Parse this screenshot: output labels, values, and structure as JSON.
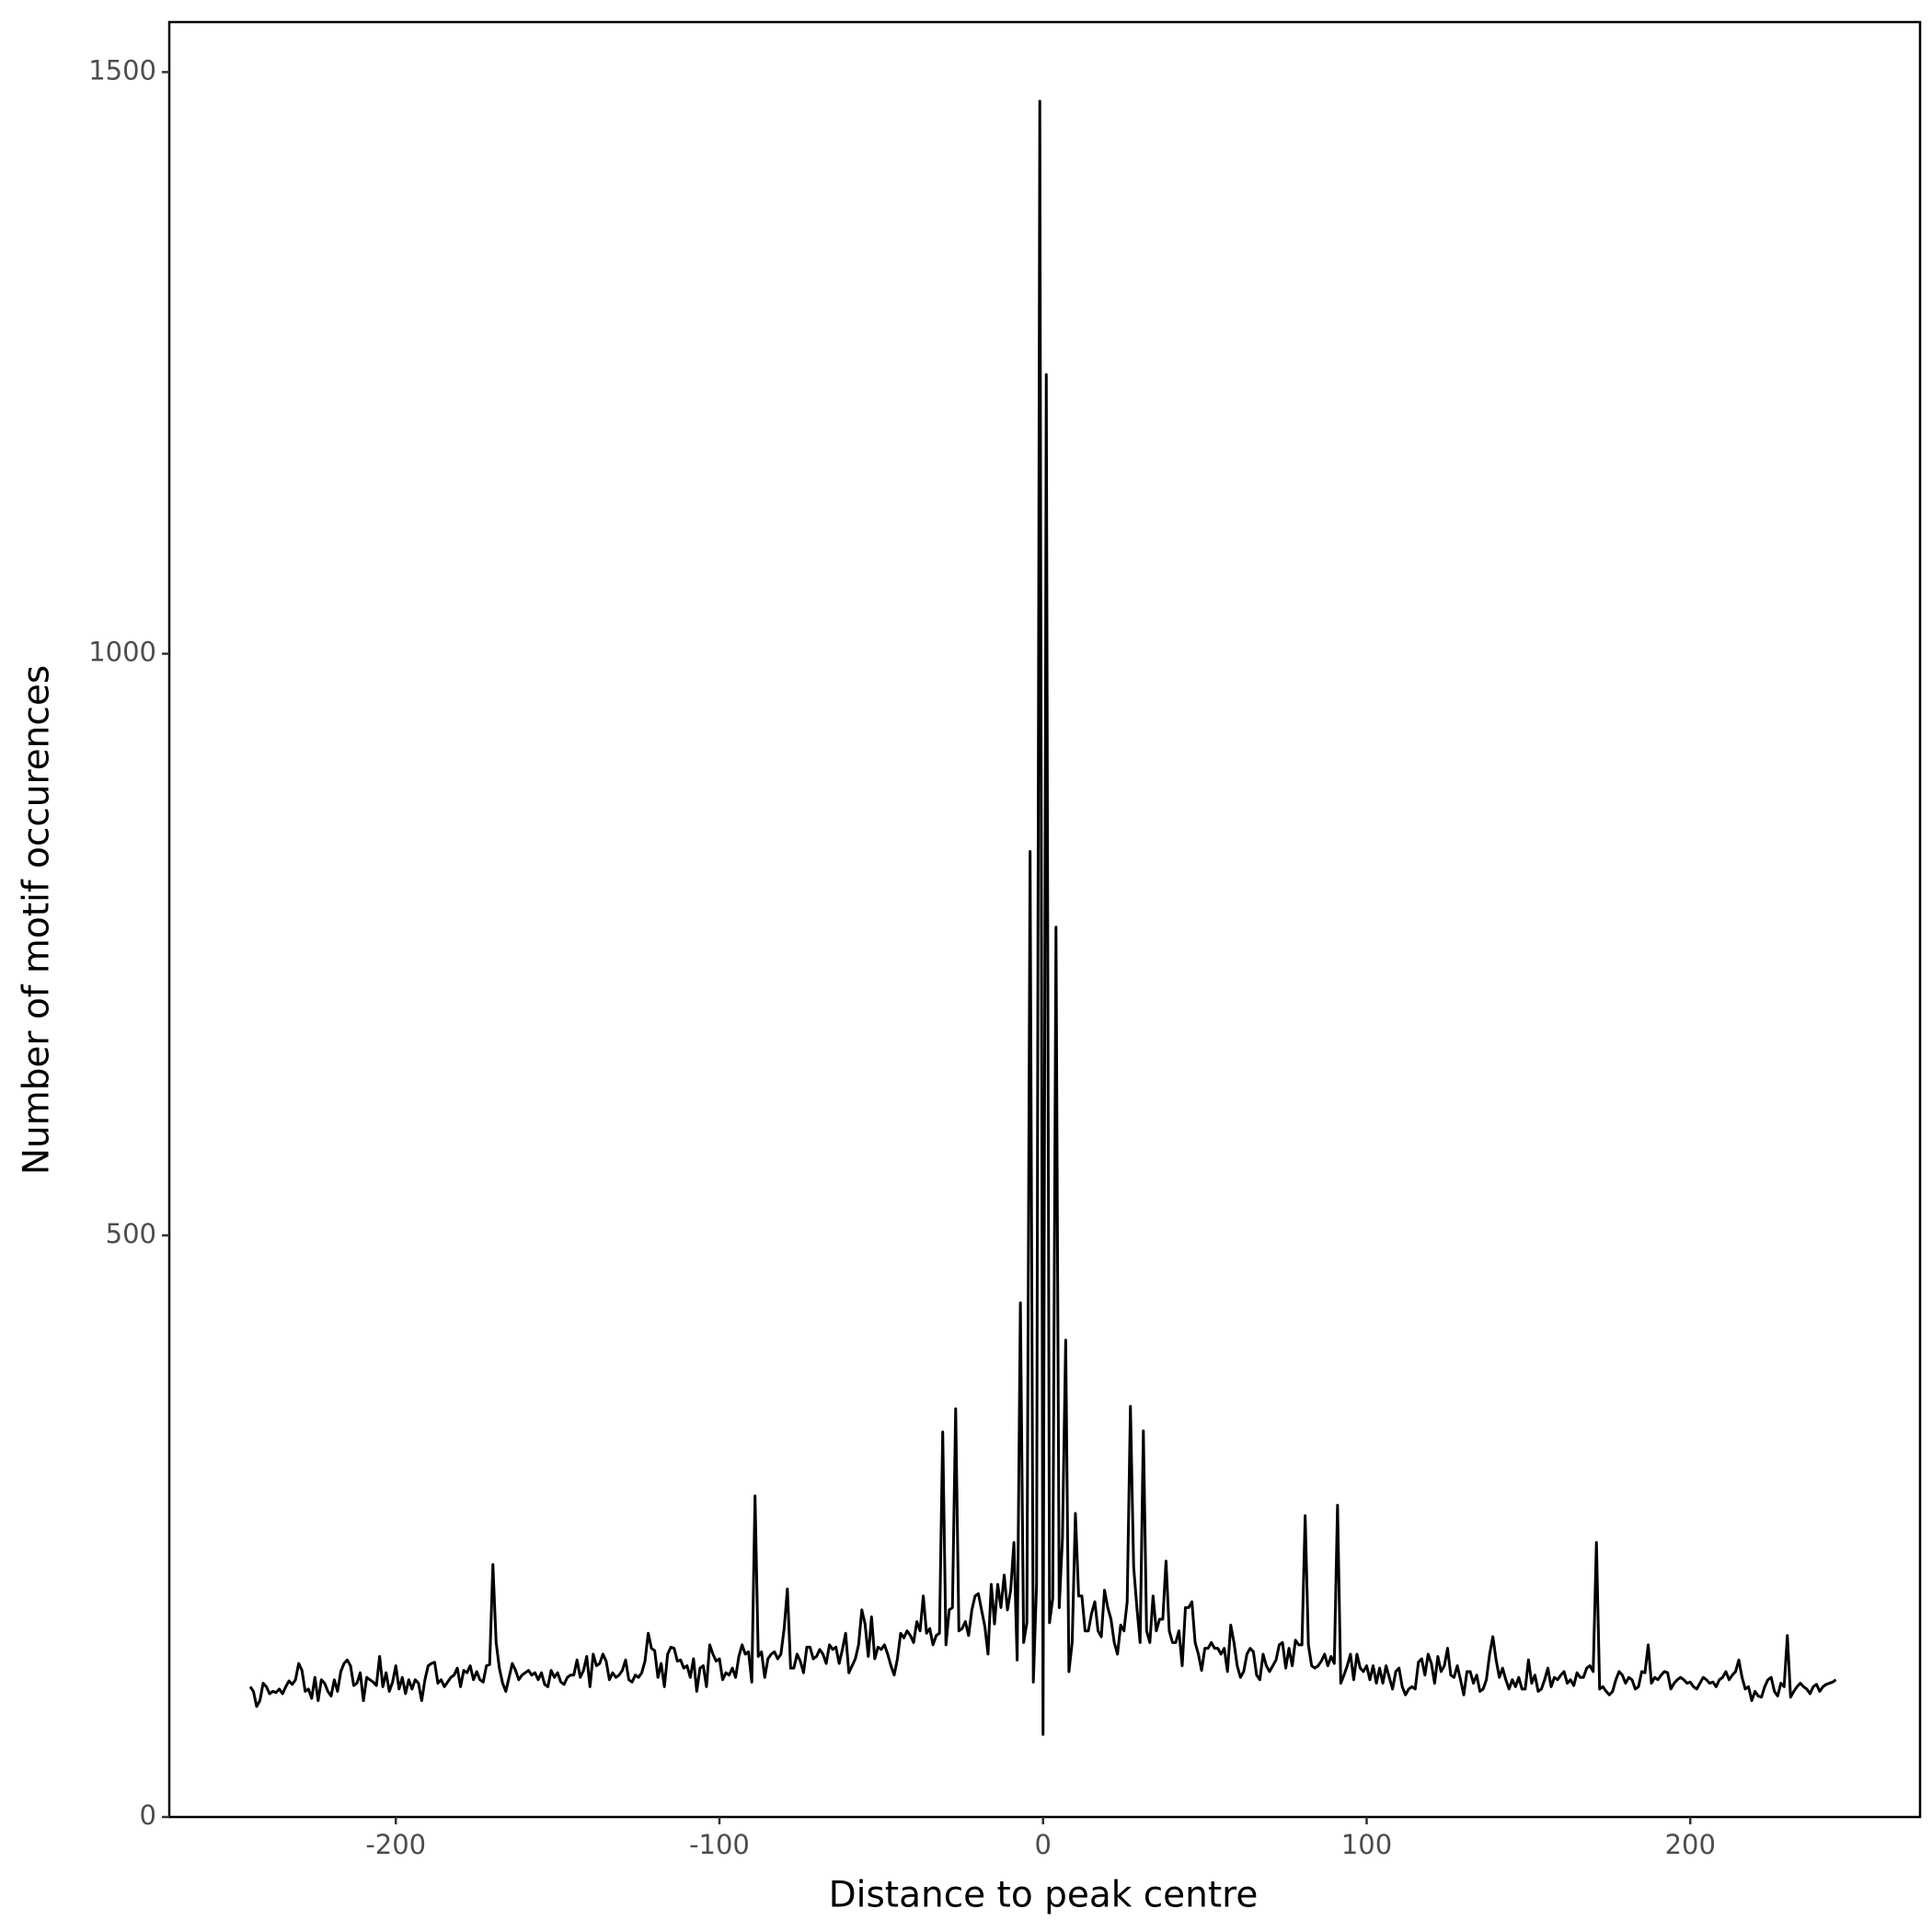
{
  "chart_data": {
    "type": "line",
    "x_label": "Distance to peak centre",
    "y_label": "Number of motif occurences",
    "xlim": [
      -270,
      271
    ],
    "ylim": [
      0,
      1543
    ],
    "xticks": [
      -200,
      -100,
      0,
      100,
      200
    ],
    "yticks": [
      0,
      500,
      1000,
      1500
    ],
    "grid": false,
    "x": [
      -245,
      -244,
      -243,
      -242,
      -241,
      -240,
      -239,
      -238,
      -237,
      -236,
      -235,
      -234,
      -233,
      -232,
      -231,
      -230,
      -229,
      -228,
      -227,
      -226,
      -225,
      -224,
      -223,
      -222,
      -221,
      -220,
      -219,
      -218,
      -217,
      -216,
      -215,
      -214,
      -213,
      -212,
      -211,
      -210,
      -209,
      -208,
      -207,
      -206,
      -205,
      -204,
      -203,
      -202,
      -201,
      -200,
      -199,
      -198,
      -197,
      -196,
      -195,
      -194,
      -193,
      -192,
      -191,
      -190,
      -189,
      -188,
      -187,
      -186,
      -185,
      -184,
      -183,
      -182,
      -181,
      -180,
      -179,
      -178,
      -177,
      -176,
      -175,
      -174,
      -173,
      -172,
      -171,
      -170,
      -169,
      -168,
      -167,
      -166,
      -165,
      -164,
      -163,
      -162,
      -161,
      -160,
      -159,
      -158,
      -157,
      -156,
      -155,
      -154,
      -153,
      -152,
      -151,
      -150,
      -149,
      -148,
      -147,
      -146,
      -145,
      -144,
      -143,
      -142,
      -141,
      -140,
      -139,
      -138,
      -137,
      -136,
      -135,
      -134,
      -133,
      -132,
      -131,
      -130,
      -129,
      -128,
      -127,
      -126,
      -125,
      -124,
      -123,
      -122,
      -121,
      -120,
      -119,
      -118,
      -117,
      -116,
      -115,
      -114,
      -113,
      -112,
      -111,
      -110,
      -109,
      -108,
      -107,
      -106,
      -105,
      -104,
      -103,
      -102,
      -101,
      -100,
      -99,
      -98,
      -97,
      -96,
      -95,
      -94,
      -93,
      -92,
      -91,
      -90,
      -89,
      -88,
      -87,
      -86,
      -85,
      -84,
      -83,
      -82,
      -81,
      -80,
      -79,
      -78,
      -77,
      -76,
      -75,
      -74,
      -73,
      -72,
      -71,
      -70,
      -69,
      -68,
      -67,
      -66,
      -65,
      -64,
      -63,
      -62,
      -61,
      -60,
      -59,
      -58,
      -57,
      -56,
      -55,
      -54,
      -53,
      -52,
      -51,
      -50,
      -49,
      -48,
      -47,
      -46,
      -45,
      -44,
      -43,
      -42,
      -41,
      -40,
      -39,
      -38,
      -37,
      -36,
      -35,
      -34,
      -33,
      -32,
      -31,
      -30,
      -29,
      -28,
      -27,
      -26,
      -25,
      -24,
      -23,
      -22,
      -21,
      -20,
      -19,
      -18,
      -17,
      -16,
      -15,
      -14,
      -13,
      -12,
      -11,
      -10,
      -9,
      -8,
      -7,
      -6,
      -5,
      -4,
      -3,
      -2,
      -1,
      0,
      1,
      2,
      3,
      4,
      5,
      6,
      7,
      8,
      9,
      10,
      11,
      12,
      13,
      14,
      15,
      16,
      17,
      18,
      19,
      20,
      21,
      22,
      23,
      24,
      25,
      26,
      27,
      28,
      29,
      30,
      31,
      32,
      33,
      34,
      35,
      36,
      37,
      38,
      39,
      40,
      41,
      42,
      43,
      44,
      45,
      46,
      47,
      48,
      49,
      50,
      51,
      52,
      53,
      54,
      55,
      56,
      57,
      58,
      59,
      60,
      61,
      62,
      63,
      64,
      65,
      66,
      67,
      68,
      69,
      70,
      71,
      72,
      73,
      74,
      75,
      76,
      77,
      78,
      79,
      80,
      81,
      82,
      83,
      84,
      85,
      86,
      87,
      88,
      89,
      90,
      91,
      92,
      93,
      94,
      95,
      96,
      97,
      98,
      99,
      100,
      101,
      102,
      103,
      104,
      105,
      106,
      107,
      108,
      109,
      110,
      111,
      112,
      113,
      114,
      115,
      116,
      117,
      118,
      119,
      120,
      121,
      122,
      123,
      124,
      125,
      126,
      127,
      128,
      129,
      130,
      131,
      132,
      133,
      134,
      135,
      136,
      137,
      138,
      139,
      140,
      141,
      142,
      143,
      144,
      145,
      146,
      147,
      148,
      149,
      150,
      151,
      152,
      153,
      154,
      155,
      156,
      157,
      158,
      159,
      160,
      161,
      162,
      163,
      164,
      165,
      166,
      167,
      168,
      169,
      170,
      171,
      172,
      173,
      174,
      175,
      176,
      177,
      178,
      179,
      180,
      181,
      182,
      183,
      184,
      185,
      186,
      187,
      188,
      189,
      190,
      191,
      192,
      193,
      194,
      195,
      196,
      197,
      198,
      199,
      200,
      201,
      202,
      203,
      204,
      205,
      206,
      207,
      208,
      209,
      210,
      211,
      212,
      213,
      214,
      215,
      216,
      217,
      218,
      219,
      220,
      221,
      222,
      223,
      224,
      225,
      226,
      227,
      228,
      229,
      230,
      231,
      232,
      233,
      234,
      235,
      236,
      237,
      238,
      239,
      240,
      241,
      242,
      243,
      244,
      245
    ],
    "series": [
      {
        "color": "#000000",
        "values": [
          112,
          108,
          95,
          100,
          115,
          112,
          106,
          108,
          107,
          110,
          106,
          112,
          117,
          114,
          118,
          132,
          126,
          108,
          110,
          102,
          120,
          100,
          118,
          115,
          108,
          104,
          118,
          108,
          125,
          132,
          135,
          130,
          113,
          115,
          124,
          100,
          120,
          118,
          116,
          113,
          138,
          112,
          124,
          108,
          116,
          130,
          110,
          120,
          106,
          118,
          110,
          118,
          115,
          100,
          118,
          130,
          132,
          133,
          115,
          118,
          112,
          116,
          120,
          122,
          128,
          112,
          126,
          124,
          130,
          118,
          125,
          118,
          116,
          130,
          131,
          217,
          150,
          128,
          115,
          108,
          120,
          132,
          126,
          118,
          122,
          124,
          126,
          122,
          124,
          118,
          124,
          114,
          112,
          126,
          120,
          124,
          116,
          114,
          120,
          122,
          122,
          135,
          120,
          126,
          138,
          112,
          140,
          130,
          132,
          140,
          134,
          118,
          124,
          120,
          122,
          126,
          135,
          118,
          116,
          122,
          120,
          124,
          134,
          158,
          145,
          143,
          120,
          132,
          112,
          140,
          146,
          145,
          134,
          135,
          128,
          130,
          120,
          136,
          108,
          128,
          130,
          112,
          148,
          140,
          134,
          136,
          118,
          124,
          122,
          128,
          120,
          138,
          148,
          140,
          142,
          116,
          276,
          138,
          142,
          120,
          136,
          140,
          142,
          136,
          140,
          162,
          196,
          128,
          128,
          140,
          134,
          124,
          146,
          146,
          136,
          138,
          144,
          140,
          132,
          148,
          144,
          146,
          132,
          144,
          158,
          124,
          130,
          136,
          148,
          178,
          166,
          138,
          172,
          136,
          146,
          144,
          148,
          140,
          130,
          122,
          136,
          158,
          154,
          160,
          156,
          150,
          168,
          160,
          190,
          158,
          162,
          148,
          156,
          158,
          331,
          148,
          178,
          180,
          351,
          160,
          162,
          168,
          156,
          178,
          190,
          192,
          178,
          164,
          140,
          200,
          166,
          200,
          180,
          208,
          178,
          195,
          236,
          135,
          442,
          150,
          167,
          830,
          116,
          200,
          1475,
          71,
          1240,
          167,
          188,
          765,
          180,
          240,
          410,
          125,
          150,
          261,
          190,
          190,
          160,
          160,
          175,
          185,
          160,
          155,
          195,
          180,
          170,
          150,
          140,
          165,
          160,
          185,
          353,
          215,
          180,
          150,
          332,
          160,
          150,
          190,
          160,
          170,
          170,
          220,
          160,
          150,
          150,
          160,
          130,
          180,
          180,
          185,
          150,
          140,
          126,
          145,
          145,
          150,
          145,
          145,
          140,
          145,
          125,
          165,
          150,
          130,
          120,
          125,
          140,
          145,
          142,
          122,
          118,
          140,
          130,
          125,
          130,
          135,
          148,
          150,
          128,
          145,
          130,
          152,
          148,
          148,
          259,
          148,
          130,
          128,
          130,
          134,
          140,
          130,
          138,
          132,
          268,
          115,
          122,
          130,
          140,
          118,
          140,
          128,
          125,
          130,
          118,
          130,
          115,
          128,
          115,
          130,
          120,
          110,
          125,
          128,
          112,
          105,
          110,
          112,
          110,
          133,
          136,
          122,
          140,
          132,
          115,
          138,
          125,
          130,
          145,
          122,
          120,
          130,
          118,
          105,
          125,
          125,
          115,
          122,
          108,
          110,
          118,
          140,
          155,
          135,
          120,
          128,
          118,
          110,
          118,
          112,
          120,
          110,
          110,
          135,
          115,
          122,
          108,
          110,
          118,
          128,
          112,
          120,
          118,
          122,
          125,
          115,
          118,
          113,
          124,
          120,
          120,
          128,
          130,
          125,
          236,
          110,
          112,
          108,
          105,
          108,
          118,
          125,
          122,
          115,
          120,
          118,
          110,
          112,
          125,
          124,
          148,
          115,
          120,
          118,
          122,
          125,
          124,
          110,
          115,
          118,
          120,
          118,
          115,
          116,
          112,
          110,
          115,
          120,
          118,
          115,
          116,
          112,
          118,
          120,
          125,
          118,
          122,
          125,
          135,
          120,
          110,
          112,
          100,
          108,
          104,
          103,
          112,
          118,
          120,
          108,
          104,
          115,
          112,
          156,
          103,
          108,
          112,
          115,
          112,
          110,
          106,
          112,
          114,
          108,
          112,
          114,
          115,
          116,
          118
        ]
      }
    ]
  }
}
